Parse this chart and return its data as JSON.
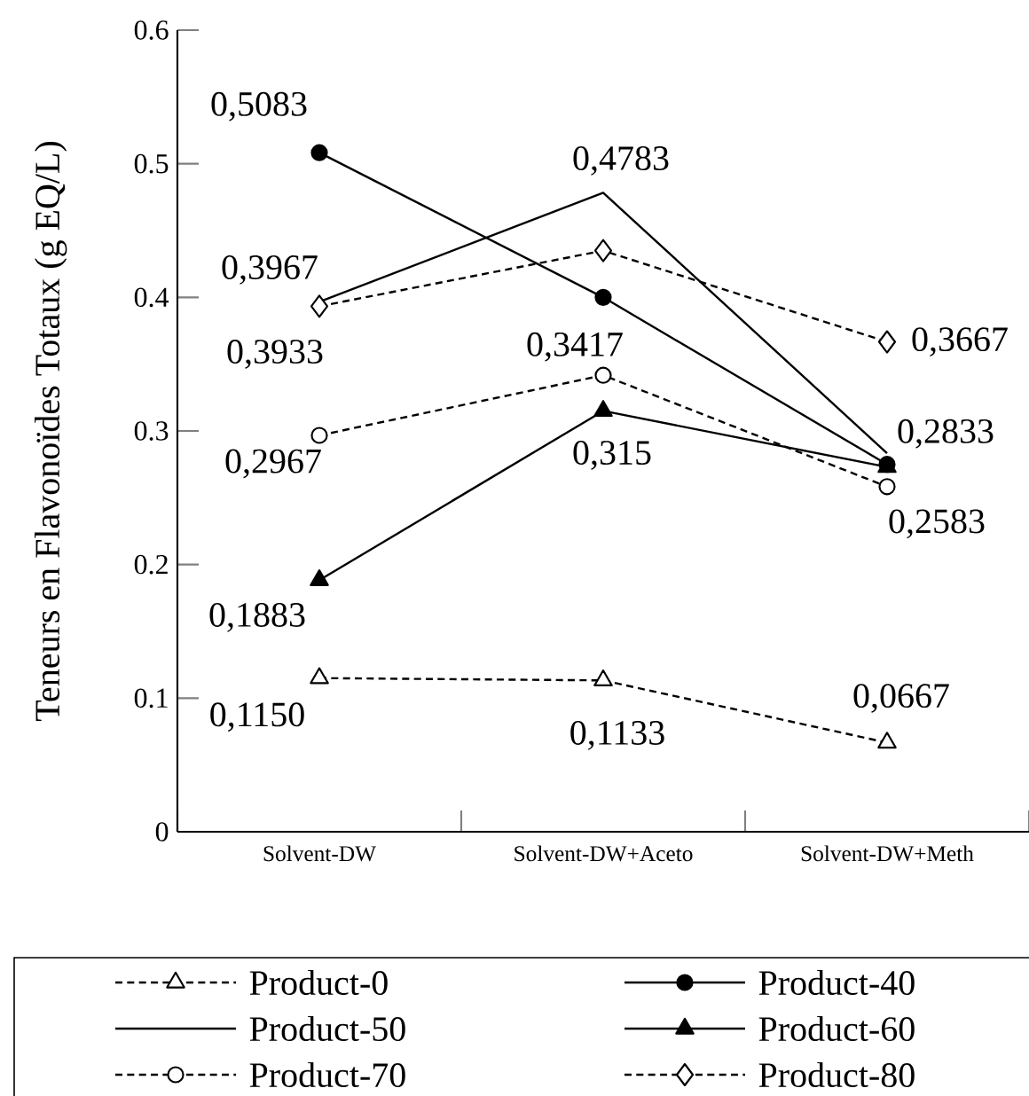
{
  "chart_data": {
    "type": "line",
    "ylabel": "Teneurs en Flavonoïdes Totaux (g EQ/L)",
    "categories": [
      "Solvent-DW",
      "Solvent-DW+Aceto",
      "Solvent-DW+Meth"
    ],
    "ylim": [
      0,
      0.6
    ],
    "yticks": [
      0,
      0.1,
      0.2,
      0.3,
      0.4,
      0.5,
      0.6
    ],
    "legend": "bottom",
    "series": [
      {
        "name": "Product-0",
        "color": "#000000",
        "marker": "triangle",
        "line_style": "dashed",
        "values": [
          0.115,
          0.1133,
          0.0667
        ],
        "value_labels": [
          "0,1150",
          "0,1133",
          "0,0667"
        ]
      },
      {
        "name": "Product-40",
        "color": "#000000",
        "marker": "circle",
        "line_style": "solid",
        "values": [
          0.5083,
          0.4,
          0.275
        ],
        "value_labels": [
          "0,5083",
          null,
          null
        ]
      },
      {
        "name": "Product-50",
        "color": "#000000",
        "marker": "none",
        "line_style": "solid",
        "values": [
          0.3967,
          0.4783,
          0.2833
        ],
        "value_labels": [
          "0,3967",
          "0,4783",
          "0,2833"
        ]
      },
      {
        "name": "Product-60",
        "color": "#000000",
        "marker": "triangle",
        "line_style": "solid",
        "values": [
          0.1883,
          0.315,
          0.273
        ],
        "value_labels": [
          "0,1883",
          "0,315",
          null
        ]
      },
      {
        "name": "Product-70",
        "color": "#000000",
        "marker": "circle",
        "line_style": "dashed",
        "values": [
          0.2967,
          0.3417,
          0.2583
        ],
        "value_labels": [
          "0,2967",
          "0,3417",
          "0,2583"
        ]
      },
      {
        "name": "Product-80",
        "color": "#000000",
        "marker": "diamond",
        "line_style": "dashed",
        "values": [
          0.3933,
          0.435,
          0.3667
        ],
        "value_labels": [
          "0,3933",
          null,
          "0,3667"
        ]
      }
    ]
  }
}
